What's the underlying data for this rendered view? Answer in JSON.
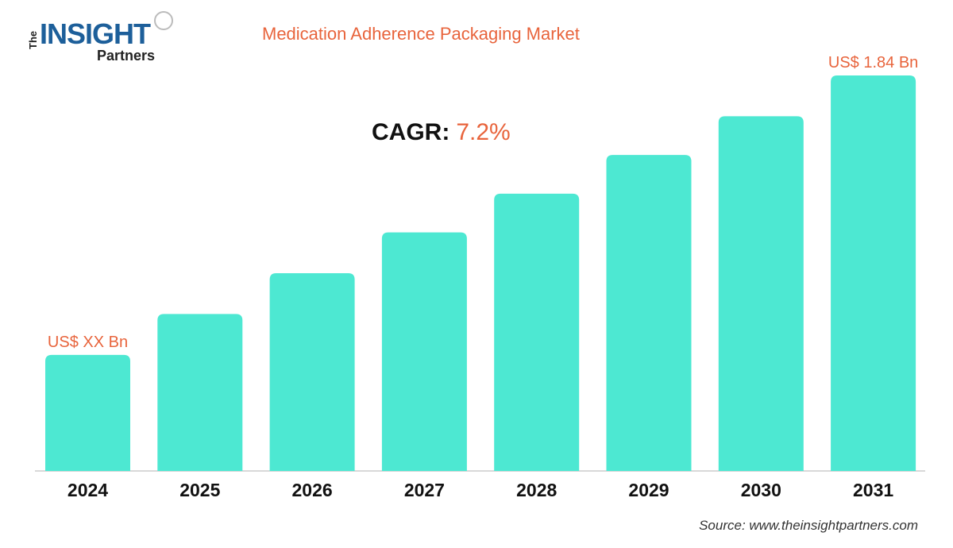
{
  "logo": {
    "the": "The",
    "main": "INSIGHT",
    "sub": "Partners"
  },
  "cagr": {
    "label": "CAGR:",
    "value": "7.2%"
  },
  "source": "Source: www.theinsightpartners.com",
  "colors": {
    "bar": "#4de8d2",
    "accent": "#e8643c",
    "axis": "#cccccc"
  },
  "chart_data": {
    "type": "bar",
    "title": "Medication Adherence Packaging Market",
    "categories": [
      "2024",
      "2025",
      "2026",
      "2027",
      "2028",
      "2029",
      "2030",
      "2031"
    ],
    "values": [
      0.54,
      0.73,
      0.92,
      1.11,
      1.29,
      1.47,
      1.65,
      1.84
    ],
    "unit": "US$ Bn",
    "data_labels": {
      "2024": "US$ XX Bn",
      "2031": "US$ 1.84 Bn"
    },
    "xlabel": "",
    "ylabel": "",
    "ylim": [
      0,
      1.84
    ],
    "grid": false,
    "legend": "none"
  }
}
